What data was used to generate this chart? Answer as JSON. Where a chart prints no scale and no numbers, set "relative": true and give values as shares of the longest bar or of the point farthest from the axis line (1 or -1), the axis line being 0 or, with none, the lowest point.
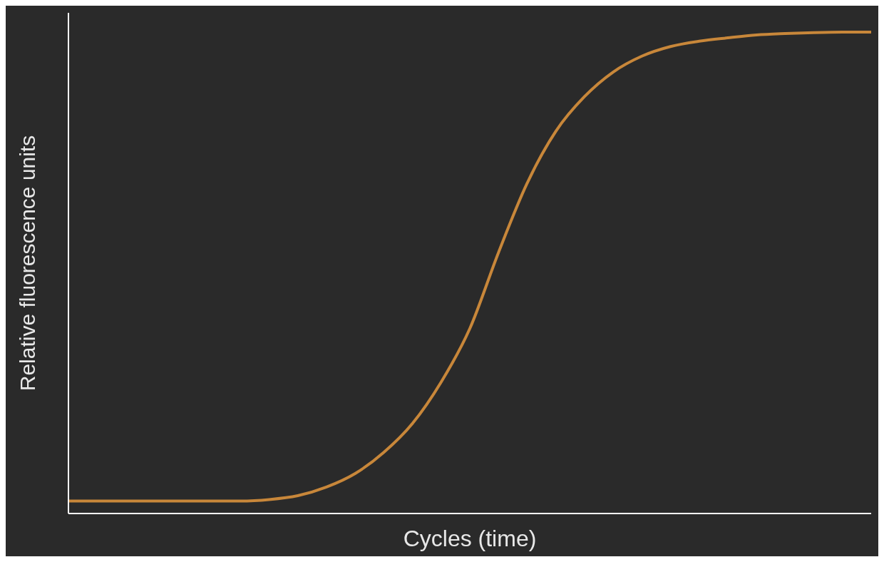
{
  "chart_data": {
    "type": "line",
    "relative": true,
    "xlabel": "Cycles (time)",
    "ylabel": "Relative fluorescence units",
    "categories": [
      null,
      null,
      null,
      null,
      null,
      null,
      null,
      null,
      null,
      null,
      null,
      null,
      null,
      null,
      null,
      null,
      null,
      null,
      null,
      null,
      null,
      null,
      null,
      null,
      null,
      null,
      null,
      null,
      null
    ],
    "series": [
      {
        "color": "#c8873a",
        "values": [
          0.026,
          0.026,
          0.026,
          0.026,
          0.026,
          0.026,
          0.026,
          0.029,
          0.037,
          0.055,
          0.083,
          0.127,
          0.187,
          0.273,
          0.384,
          0.542,
          0.686,
          0.794,
          0.866,
          0.917,
          0.95,
          0.97,
          0.981,
          0.988,
          0.994,
          0.997,
          0.999,
          1,
          1
        ]
      }
    ]
  }
}
